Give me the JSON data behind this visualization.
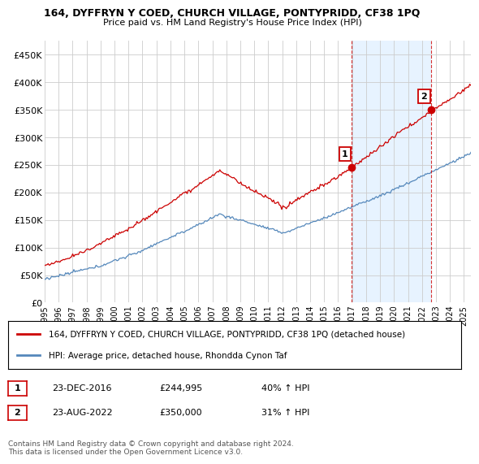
{
  "title": "164, DYFFRYN Y COED, CHURCH VILLAGE, PONTYPRIDD, CF38 1PQ",
  "subtitle": "Price paid vs. HM Land Registry's House Price Index (HPI)",
  "ylabel_ticks": [
    "£0",
    "£50K",
    "£100K",
    "£150K",
    "£200K",
    "£250K",
    "£300K",
    "£350K",
    "£400K",
    "£450K"
  ],
  "ytick_vals": [
    0,
    50000,
    100000,
    150000,
    200000,
    250000,
    300000,
    350000,
    400000,
    450000
  ],
  "ylim": [
    0,
    475000
  ],
  "xlim_start": 1995.0,
  "xlim_end": 2025.5,
  "legend_line1": "164, DYFFRYN Y COED, CHURCH VILLAGE, PONTYPRIDD, CF38 1PQ (detached house)",
  "legend_line2": "HPI: Average price, detached house, Rhondda Cynon Taf",
  "sale1_label": "1",
  "sale1_date": "23-DEC-2016",
  "sale1_price": "£244,995",
  "sale1_hpi": "40% ↑ HPI",
  "sale1_x": 2016.98,
  "sale1_y": 244995,
  "sale2_label": "2",
  "sale2_date": "23-AUG-2022",
  "sale2_price": "£350,000",
  "sale2_hpi": "31% ↑ HPI",
  "sale2_x": 2022.65,
  "sale2_y": 350000,
  "copyright_text": "Contains HM Land Registry data © Crown copyright and database right 2024.\nThis data is licensed under the Open Government Licence v3.0.",
  "red_color": "#cc0000",
  "blue_color": "#5588bb",
  "shade_color": "#ddeeff",
  "background_color": "#ffffff",
  "grid_color": "#cccccc",
  "xtick_years": [
    "1995",
    "1996",
    "1997",
    "1998",
    "1999",
    "2000",
    "2001",
    "2002",
    "2003",
    "2004",
    "2005",
    "2006",
    "2007",
    "2008",
    "2009",
    "2010",
    "2011",
    "2012",
    "2013",
    "2014",
    "2015",
    "2016",
    "2017",
    "2018",
    "2019",
    "2020",
    "2021",
    "2022",
    "2023",
    "2024",
    "2025"
  ]
}
